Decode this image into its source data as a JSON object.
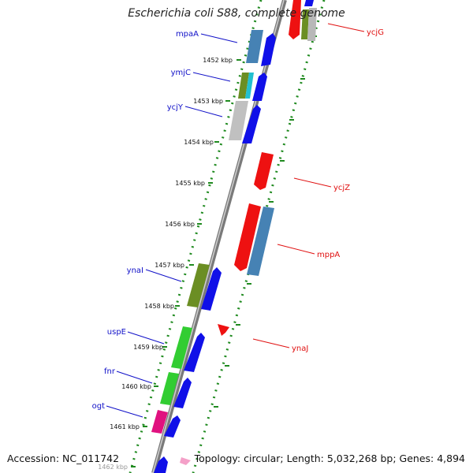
{
  "title": "Escherichia coli S88, complete genome",
  "accession": "Accession: NC_011742",
  "topology": "Topology: circular; Length: 5,032,268 bp; Genes: 4,894",
  "colors": {
    "backbone": "#8a8a8a",
    "dotted_track": "#1f8a1f",
    "label_left": "#1010c8",
    "label_right": "#e01010",
    "tick_text": "#111111"
  },
  "ticks": [
    {
      "label": "1452 kbp"
    },
    {
      "label": "1453 kbp"
    },
    {
      "label": "1454 kbp"
    },
    {
      "label": "1455 kbp"
    },
    {
      "label": "1456 kbp"
    },
    {
      "label": "1457 kbp"
    },
    {
      "label": "1458 kbp"
    },
    {
      "label": "1459 kbp"
    },
    {
      "label": "1460 kbp"
    },
    {
      "label": "1461 kbp"
    },
    {
      "label": "1462 kbp"
    }
  ],
  "gene_labels_left": [
    "mpaA",
    "ymjC",
    "ycjY",
    "ynaI",
    "uspE",
    "fnr",
    "ogt"
  ],
  "gene_labels_right": [
    "ycjG",
    "ycjZ",
    "mppA",
    "ynaJ"
  ]
}
